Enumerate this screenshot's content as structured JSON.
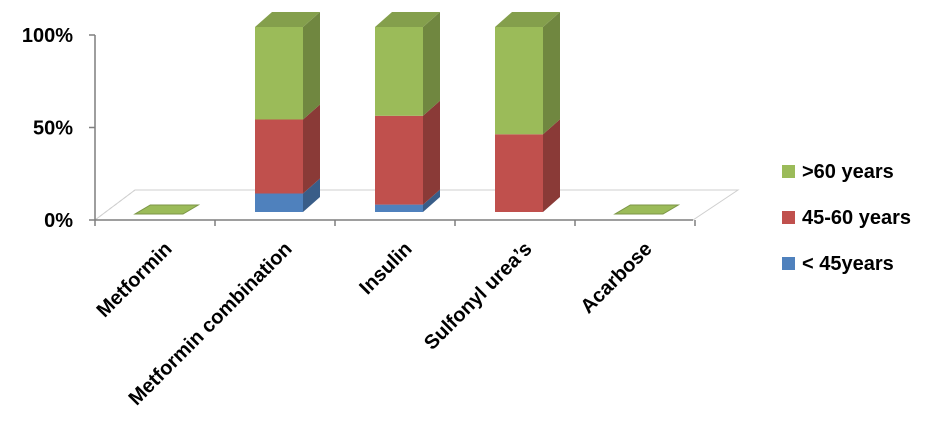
{
  "chart_data": {
    "type": "bar",
    "stacked": true,
    "percent_stacked": true,
    "three_d": true,
    "categories": [
      "Metformin",
      "Metformin combination",
      "Insulin",
      "Sulfonyl urea’s",
      "Acarbose"
    ],
    "series": [
      {
        "name": "< 45years",
        "color": "#4F81BD",
        "values": [
          0,
          10,
          4,
          0,
          0
        ]
      },
      {
        "name": "45-60 years",
        "color": "#C0504D",
        "values": [
          0,
          40,
          48,
          42,
          0
        ]
      },
      {
        "name": ">60 years",
        "color": "#9BBB59",
        "values": [
          0,
          50,
          48,
          58,
          0
        ]
      }
    ],
    "ylim": [
      0,
      100
    ],
    "yticks": [
      "0%",
      "50%",
      "100%"
    ],
    "legend_position": "right",
    "grid": false
  }
}
